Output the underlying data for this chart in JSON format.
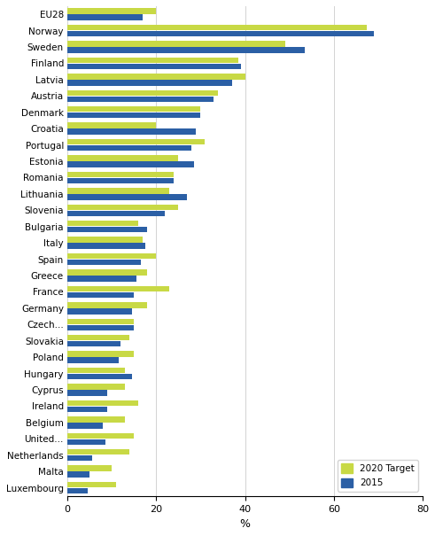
{
  "countries": [
    "EU28",
    "Norway",
    "Sweden",
    "Finland",
    "Latvia",
    "Austria",
    "Denmark",
    "Croatia",
    "Portugal",
    "Estonia",
    "Romania",
    "Lithuania",
    "Slovenia",
    "Bulgaria",
    "Italy",
    "Spain",
    "Greece",
    "France",
    "Germany",
    "Czech...",
    "Slovakia",
    "Poland",
    "Hungary",
    "Cyprus",
    "Ireland",
    "Belgium",
    "United...",
    "Netherlands",
    "Malta",
    "Luxembourg"
  ],
  "target_2020": [
    20,
    67.5,
    49,
    38.5,
    40,
    34,
    30,
    20,
    31,
    25,
    24,
    23,
    25,
    16,
    17,
    20,
    18,
    23,
    18,
    15,
    14,
    15,
    13,
    13,
    16,
    13,
    15,
    14,
    10,
    11
  ],
  "val_2015": [
    17,
    69,
    53.5,
    39,
    37,
    33,
    30,
    29,
    28,
    28.5,
    24,
    27,
    22,
    18,
    17.5,
    16.5,
    15.5,
    15,
    14.5,
    15,
    12,
    11.5,
    14.5,
    9,
    9,
    8,
    8.5,
    5.5,
    5,
    4.5
  ],
  "bar_color_target": "#c8d945",
  "bar_color_2015": "#2b5fa5",
  "xlabel": "%",
  "xlim": [
    0,
    80
  ],
  "xticks": [
    0,
    20,
    40,
    60,
    80
  ],
  "legend_labels": [
    "2020 Target",
    "2015"
  ],
  "figsize": [
    4.91,
    6.05
  ],
  "dpi": 100
}
